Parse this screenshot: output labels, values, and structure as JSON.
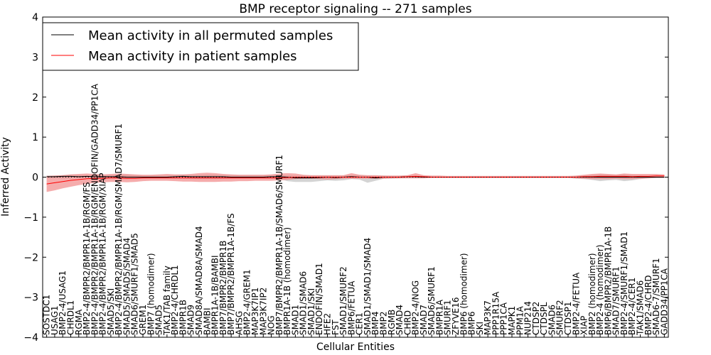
{
  "chart_data": {
    "type": "line",
    "title": "BMP receptor signaling -- 271 samples",
    "xlabel": "Cellular Entities",
    "ylabel": "Inferred Activity",
    "ylim": [
      -4,
      4
    ],
    "yticks": [
      -4,
      -3,
      -2,
      -1,
      0,
      1,
      2,
      3,
      4
    ],
    "ytick_labels": [
      "−4",
      "−3",
      "−2",
      "−1",
      "0",
      "1",
      "2",
      "3",
      "4"
    ],
    "legend_position": "top-left",
    "legend": [
      "Mean activity in all permuted samples",
      "Mean activity in patient samples"
    ],
    "colors": {
      "permuted": "#000000",
      "patient": "#ff0000",
      "patient_band": "#f08080",
      "permuted_band": "#b0b0b0"
    },
    "categories": [
      "SOSTDC1",
      "USAG1",
      "BMP2-4/USAG1",
      "CHRDL1",
      "RGMA",
      "BMP2-4/BMPR2/BMPR1A-1B/RGM/FS",
      "BMP2-4/BMPR2/BMPR1A-1B/RGM/ENDOFIN/GADD34/PP1CA",
      "BMP2-4/BMPR2/BMPR1A-1B/RGM/XIAP",
      "SMAD5/SKI",
      "BMP2-4/BMPR2/BMPR1A-1B/RGM/SMAD7/SMURF1",
      "SMAD5/SMAD5/SMAD4",
      "SMAD6/SMURF1/SMAD5",
      "GREM1",
      "BMP7 (homodimer)",
      "SMAD5",
      "TAK1/TAB family",
      "BMP2-4/CHRDL1",
      "BMPR1B",
      "SMAD9",
      "SMAD8A/SMAD8A/SMAD4",
      "BAMBI",
      "BMPR1A-1B/BAMBI",
      "BMP7/BMPR2/BMPR1B",
      "BMP7/BMPR2/BMPR1A-1B/FS",
      "AHSG",
      "BMP2-4/GREM1",
      "MAP3K7IP1",
      "MAP3K7IP2",
      "NOG",
      "BMP7/BMPR2/BMPR1A-1B/SMAD6/SMURF1",
      "BMPR1A-1B (homodimer)",
      "SMAD1",
      "SMAD1/SMAD6",
      "SMAD1/SKI",
      "ENDOFIN/SMAD1",
      "HFE2",
      "FST",
      "SMAD1/SMURF2",
      "BMP6/FETUA",
      "CER1",
      "SMAD1/SMAD1/SMAD4",
      "BMP4",
      "BMP2",
      "RGMB",
      "SMAD4",
      "CHRD",
      "BMP2-4/NOG",
      "SMAD7",
      "SMAD6/SMURF1",
      "BMPR1A",
      "SMURF1",
      "ZFYVE16",
      "BMP6 (homodimer)",
      "BMP6",
      "SKI",
      "MAP3K7",
      "PPP1R15A",
      "PPP1CA",
      "MAPK1",
      "PPM1A",
      "NUP214",
      "CTDSP2",
      "CTDSPL",
      "SMAD6",
      "SMURF2",
      "CTDSP1",
      "BMP2-4/FETUA",
      "XIAP",
      "BMP2 (homodimer)",
      "BMP2-4 (homodimer)",
      "BMP6/BMPR2/BMPR1A-1B",
      "SMAD7/SMURF1",
      "BMP2-4/SMURF1/SMAD1",
      "BMP2-4/CER1",
      "TAK1/SMAD6",
      "BMP2-4/CHRD",
      "SMAD6-7/SMURF1",
      "GADD34/PP1CA"
    ],
    "series": [
      {
        "name": "Mean activity in all permuted samples",
        "values": [
          0.01,
          0.01,
          0.02,
          0.02,
          0.01,
          0.02,
          0.01,
          0.01,
          0.01,
          0.01,
          0.0,
          0.0,
          0.0,
          0.0,
          0.0,
          0.0,
          0.01,
          0.02,
          0.01,
          0.01,
          0.01,
          0.01,
          0.01,
          0.0,
          0.0,
          0.0,
          0.0,
          0.0,
          0.01,
          0.01,
          0.0,
          -0.02,
          -0.02,
          -0.02,
          -0.01,
          0.0,
          -0.01,
          0.0,
          0.01,
          0.0,
          0.0,
          -0.02,
          0.0,
          0.0,
          0.0,
          0.01,
          0.01,
          0.0,
          0.0,
          0.0,
          0.0,
          0.0,
          0.0,
          0.0,
          0.0,
          0.0,
          0.0,
          0.0,
          0.0,
          0.0,
          0.0,
          0.0,
          0.0,
          0.0,
          0.0,
          0.0,
          0.0,
          0.0,
          0.0,
          0.0,
          0.0,
          0.0,
          0.0,
          0.0,
          0.0,
          0.0,
          0.0,
          0.0
        ],
        "lower": [
          -0.02,
          -0.02,
          -0.03,
          -0.03,
          -0.02,
          -0.02,
          -0.02,
          -0.03,
          -0.03,
          -0.05,
          -0.05,
          -0.04,
          -0.04,
          -0.03,
          -0.03,
          -0.03,
          -0.03,
          -0.03,
          -0.04,
          -0.05,
          -0.05,
          -0.05,
          -0.04,
          -0.04,
          -0.04,
          -0.04,
          -0.04,
          -0.04,
          -0.04,
          -0.04,
          -0.1,
          -0.12,
          -0.12,
          -0.12,
          -0.1,
          -0.08,
          -0.09,
          -0.08,
          -0.05,
          -0.06,
          -0.14,
          -0.09,
          -0.04,
          -0.04,
          -0.03,
          -0.02,
          -0.02,
          -0.02,
          -0.02,
          -0.02,
          -0.02,
          -0.02,
          -0.02,
          -0.02,
          -0.02,
          -0.02,
          -0.02,
          -0.02,
          -0.02,
          -0.02,
          -0.02,
          -0.02,
          -0.02,
          -0.02,
          -0.02,
          -0.02,
          -0.04,
          -0.05,
          -0.07,
          -0.1,
          -0.08,
          -0.07,
          -0.1,
          -0.08,
          -0.05,
          -0.03,
          -0.02,
          -0.02
        ],
        "upper": [
          0.04,
          0.04,
          0.05,
          0.06,
          0.05,
          0.05,
          0.04,
          0.04,
          0.05,
          0.06,
          0.06,
          0.05,
          0.04,
          0.04,
          0.04,
          0.04,
          0.05,
          0.06,
          0.05,
          0.05,
          0.06,
          0.06,
          0.05,
          0.05,
          0.05,
          0.05,
          0.05,
          0.05,
          0.05,
          0.05,
          0.04,
          0.04,
          0.04,
          0.04,
          0.04,
          0.04,
          0.04,
          0.04,
          0.05,
          0.05,
          0.04,
          0.04,
          0.04,
          0.03,
          0.03,
          0.04,
          0.04,
          0.03,
          0.02,
          0.02,
          0.02,
          0.02,
          0.02,
          0.02,
          0.02,
          0.02,
          0.02,
          0.02,
          0.02,
          0.02,
          0.02,
          0.02,
          0.02,
          0.02,
          0.02,
          0.02,
          0.03,
          0.04,
          0.05,
          0.07,
          0.06,
          0.05,
          0.07,
          0.05,
          0.04,
          0.03,
          0.03,
          0.03
        ]
      },
      {
        "name": "Mean activity in patient samples",
        "values": [
          -0.17,
          -0.14,
          -0.11,
          -0.08,
          -0.06,
          -0.04,
          -0.03,
          -0.03,
          -0.02,
          -0.02,
          -0.03,
          -0.03,
          -0.02,
          -0.02,
          -0.02,
          -0.02,
          -0.02,
          -0.02,
          -0.02,
          -0.02,
          -0.02,
          -0.02,
          -0.02,
          -0.02,
          -0.02,
          -0.02,
          -0.02,
          -0.02,
          -0.02,
          -0.02,
          -0.01,
          0.0,
          0.0,
          0.0,
          0.0,
          0.0,
          0.0,
          0.0,
          0.0,
          0.0,
          0.0,
          0.0,
          0.0,
          0.0,
          0.0,
          0.01,
          0.02,
          0.01,
          0.0,
          0.0,
          0.0,
          0.0,
          0.0,
          0.0,
          0.0,
          0.0,
          0.0,
          0.0,
          0.0,
          0.0,
          0.0,
          0.0,
          0.0,
          0.0,
          0.0,
          0.0,
          0.0,
          0.01,
          0.01,
          0.02,
          0.02,
          0.02,
          0.02,
          0.01,
          0.02,
          0.02,
          0.03,
          0.03
        ],
        "lower": [
          -0.37,
          -0.33,
          -0.28,
          -0.24,
          -0.2,
          -0.17,
          -0.14,
          -0.13,
          -0.12,
          -0.12,
          -0.13,
          -0.12,
          -0.1,
          -0.09,
          -0.09,
          -0.09,
          -0.1,
          -0.11,
          -0.11,
          -0.12,
          -0.12,
          -0.12,
          -0.11,
          -0.11,
          -0.1,
          -0.1,
          -0.09,
          -0.09,
          -0.09,
          -0.08,
          -0.07,
          -0.05,
          -0.04,
          -0.04,
          -0.05,
          -0.06,
          -0.05,
          -0.04,
          -0.04,
          -0.04,
          -0.04,
          -0.04,
          -0.04,
          -0.03,
          -0.03,
          -0.03,
          -0.03,
          -0.03,
          -0.02,
          -0.02,
          -0.02,
          -0.02,
          -0.02,
          -0.02,
          -0.02,
          -0.02,
          -0.02,
          -0.02,
          -0.02,
          -0.02,
          -0.02,
          -0.02,
          -0.02,
          -0.02,
          -0.02,
          -0.02,
          -0.03,
          -0.04,
          -0.05,
          -0.05,
          -0.05,
          -0.04,
          -0.05,
          -0.05,
          -0.04,
          -0.03,
          -0.02,
          -0.02
        ],
        "upper": [
          0.03,
          0.04,
          0.05,
          0.07,
          0.08,
          0.09,
          0.08,
          0.07,
          0.08,
          0.09,
          0.08,
          0.07,
          0.06,
          0.06,
          0.07,
          0.08,
          0.07,
          0.07,
          0.08,
          0.1,
          0.11,
          0.1,
          0.08,
          0.07,
          0.06,
          0.06,
          0.06,
          0.06,
          0.07,
          0.09,
          0.1,
          0.09,
          0.06,
          0.05,
          0.05,
          0.05,
          0.05,
          0.05,
          0.1,
          0.06,
          0.05,
          0.05,
          0.04,
          0.04,
          0.04,
          0.05,
          0.1,
          0.05,
          0.04,
          0.04,
          0.03,
          0.03,
          0.03,
          0.03,
          0.03,
          0.03,
          0.03,
          0.03,
          0.03,
          0.03,
          0.03,
          0.03,
          0.03,
          0.03,
          0.03,
          0.03,
          0.04,
          0.06,
          0.08,
          0.09,
          0.08,
          0.07,
          0.09,
          0.08,
          0.08,
          0.08,
          0.08,
          0.07
        ]
      }
    ]
  }
}
